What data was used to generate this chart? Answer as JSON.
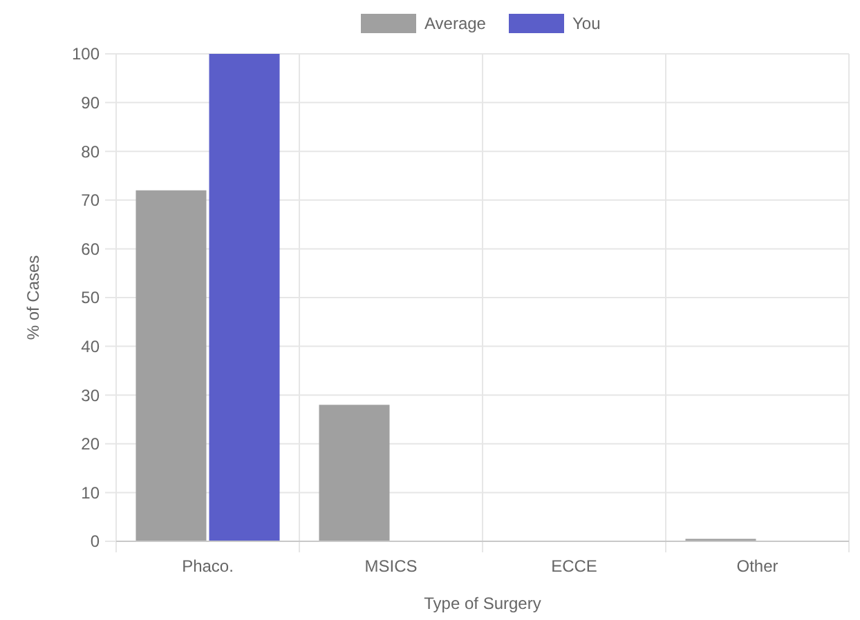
{
  "chart_data": {
    "type": "bar",
    "xlabel": "Type of Surgery",
    "ylabel": "% of Cases",
    "categories": [
      "Phaco.",
      "MSICS",
      "ECCE",
      "Other"
    ],
    "series": [
      {
        "name": "Average",
        "color": "#a0a0a0",
        "values": [
          72,
          28,
          0,
          0.5
        ]
      },
      {
        "name": "You",
        "color": "#5b5ec9",
        "values": [
          100,
          0,
          0,
          0
        ]
      }
    ],
    "ylim": [
      0,
      100
    ],
    "yticks": [
      0,
      10,
      20,
      30,
      40,
      50,
      60,
      70,
      80,
      90,
      100
    ],
    "grid": true,
    "legend": "top"
  }
}
